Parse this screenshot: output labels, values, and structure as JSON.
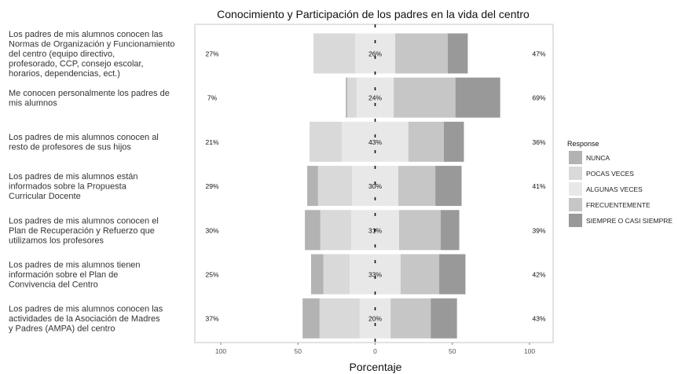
{
  "chart_data": {
    "type": "bar",
    "title": "Conocimiento y Participación de los padres en la vida del centro",
    "xlabel": "Porcentaje",
    "ylabel": "",
    "xlim": [
      -100,
      100
    ],
    "x_ticks": [
      -100,
      -50,
      0,
      50,
      100
    ],
    "x_tick_labels": [
      "100",
      "50",
      "0",
      "50",
      "100"
    ],
    "grid": false,
    "legend_title": "Response",
    "legend_position": "right",
    "series": [
      {
        "name": "NUNCA",
        "color": "#b3b3b3"
      },
      {
        "name": "POCAS VECES",
        "color": "#d9d9d9"
      },
      {
        "name": "ALGUNAS VECES",
        "color": "#e8e8e8"
      },
      {
        "name": "FRECUENTEMENTE",
        "color": "#c6c6c6"
      },
      {
        "name": "SIEMPRE O CASI SIEMPRE",
        "color": "#999999"
      }
    ],
    "items": [
      {
        "label": [
          "Los padres de mis alumnos conocen las",
          "Normas de Organización y Funcionamiento",
          "del centro (equipo directivo,",
          "profesorado, CCP, consejo escolar,",
          "horarios, dependencias, ect.)"
        ],
        "values": [
          0,
          27,
          26,
          34,
          13
        ],
        "low_pct": "27%",
        "mid_pct": "26%",
        "high_pct": "47%"
      },
      {
        "label": [
          "Me conocen personalmente los padres de",
          "mis alumnos"
        ],
        "values": [
          1,
          6,
          24,
          40,
          29
        ],
        "low_pct": "7%",
        "mid_pct": "24%",
        "high_pct": "69%"
      },
      {
        "label": [
          "Los padres de mis alumnos conocen al",
          "resto de profesores de sus hijos"
        ],
        "values": [
          0,
          21,
          43,
          23,
          13
        ],
        "low_pct": "21%",
        "mid_pct": "43%",
        "high_pct": "36%"
      },
      {
        "label": [
          "Los padres de mis alumnos están",
          "informados sobre la Propuesta",
          "Curricular Docente"
        ],
        "values": [
          7,
          22,
          30,
          24,
          17
        ],
        "low_pct": "29%",
        "mid_pct": "30%",
        "high_pct": "41%"
      },
      {
        "label": [
          "Los padres de mis alumnos conocen el",
          "Plan de Recuperación y Refuerzo que",
          "utilizamos los profesores"
        ],
        "values": [
          10,
          20,
          31,
          27,
          12
        ],
        "low_pct": "30%",
        "mid_pct": "31%",
        "high_pct": "39%"
      },
      {
        "label": [
          "Los padres de mis alumnos tienen",
          "información sobre el Plan de",
          "Convivencia del Centro"
        ],
        "values": [
          8,
          17,
          33,
          25,
          17
        ],
        "low_pct": "25%",
        "mid_pct": "33%",
        "high_pct": "42%"
      },
      {
        "label": [
          "Los padres de mis alumnos conocen las",
          "actividades de la Asociación de Madres",
          "y Padres (AMPA) del centro"
        ],
        "values": [
          11,
          26,
          20,
          26,
          17
        ],
        "low_pct": "37%",
        "mid_pct": "20%",
        "high_pct": "43%"
      }
    ]
  }
}
